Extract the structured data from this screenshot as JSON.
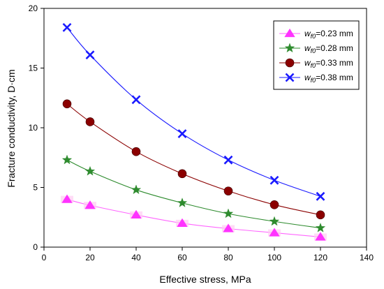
{
  "chart_data": {
    "type": "line",
    "xlabel": "Effective stress, MPa",
    "ylabel": "Fracture conductivity, D·cm",
    "xlim": [
      0,
      140
    ],
    "ylim": [
      0,
      20
    ],
    "xticks": [
      0,
      20,
      40,
      60,
      80,
      100,
      120,
      140
    ],
    "yticks": [
      0,
      5,
      10,
      15,
      20
    ],
    "grid": false,
    "legend_position": "top-right",
    "x": [
      10,
      20,
      40,
      60,
      80,
      100,
      120
    ],
    "series": [
      {
        "name": "w_f0=0.23 mm",
        "name_main": "w",
        "name_sub": "f0",
        "name_rest": "=0.23 mm",
        "marker": "triangle",
        "marker_color": "#ff33ff",
        "line_color": "#ff66ff",
        "values": [
          4.0,
          3.5,
          2.7,
          2.0,
          1.55,
          1.2,
          0.85
        ]
      },
      {
        "name": "w_f0=0.28 mm",
        "name_main": "w",
        "name_sub": "f0",
        "name_rest": "=0.28 mm",
        "marker": "star",
        "marker_color": "#2e8b2e",
        "line_color": "#2e8b2e",
        "values": [
          7.3,
          6.35,
          4.8,
          3.7,
          2.8,
          2.15,
          1.6
        ]
      },
      {
        "name": "w_f0=0.33 mm",
        "name_main": "w",
        "name_sub": "f0",
        "name_rest": "=0.33 mm",
        "marker": "circle",
        "marker_color": "#8b0000",
        "line_color": "#8b0000",
        "values": [
          12.0,
          10.5,
          8.0,
          6.15,
          4.7,
          3.55,
          2.7
        ]
      },
      {
        "name": "w_f0=0.38 mm",
        "name_main": "w",
        "name_sub": "f0",
        "name_rest": "=0.38 mm",
        "marker": "x",
        "marker_color": "#1a1aff",
        "line_color": "#1a1aff",
        "values": [
          18.4,
          16.1,
          12.35,
          9.5,
          7.3,
          5.6,
          4.25
        ]
      }
    ]
  }
}
